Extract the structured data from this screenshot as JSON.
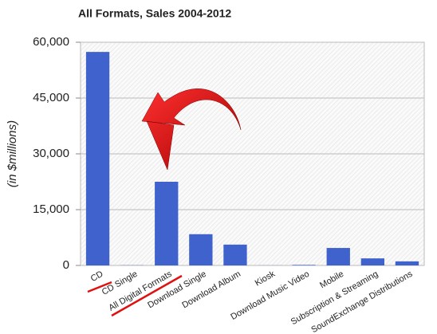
{
  "chart_data": {
    "type": "bar",
    "title": "All Formats, Sales 2004-2012",
    "y_label": "(in $millions)",
    "categories": [
      "CD",
      "CD Single",
      "All Digital Formats",
      "Download Single",
      "Download Album",
      "Kiosk",
      "Download Music Video",
      "Mobile",
      "Subscription & Streaming",
      "SoundExchange Distributions"
    ],
    "values": [
      57400,
      50,
      22500,
      8400,
      5600,
      20,
      150,
      4700,
      1900,
      1100
    ],
    "color": "#3f62cc",
    "ylim": [
      0,
      60000
    ],
    "yticks": [
      0,
      {
        "value": 15000,
        "label": "15,000"
      },
      {
        "value": 30000,
        "label": "30,000"
      },
      {
        "value": 45000,
        "label": "45,000"
      },
      {
        "value": 60000,
        "label": "60,000"
      }
    ],
    "grid": true
  }
}
